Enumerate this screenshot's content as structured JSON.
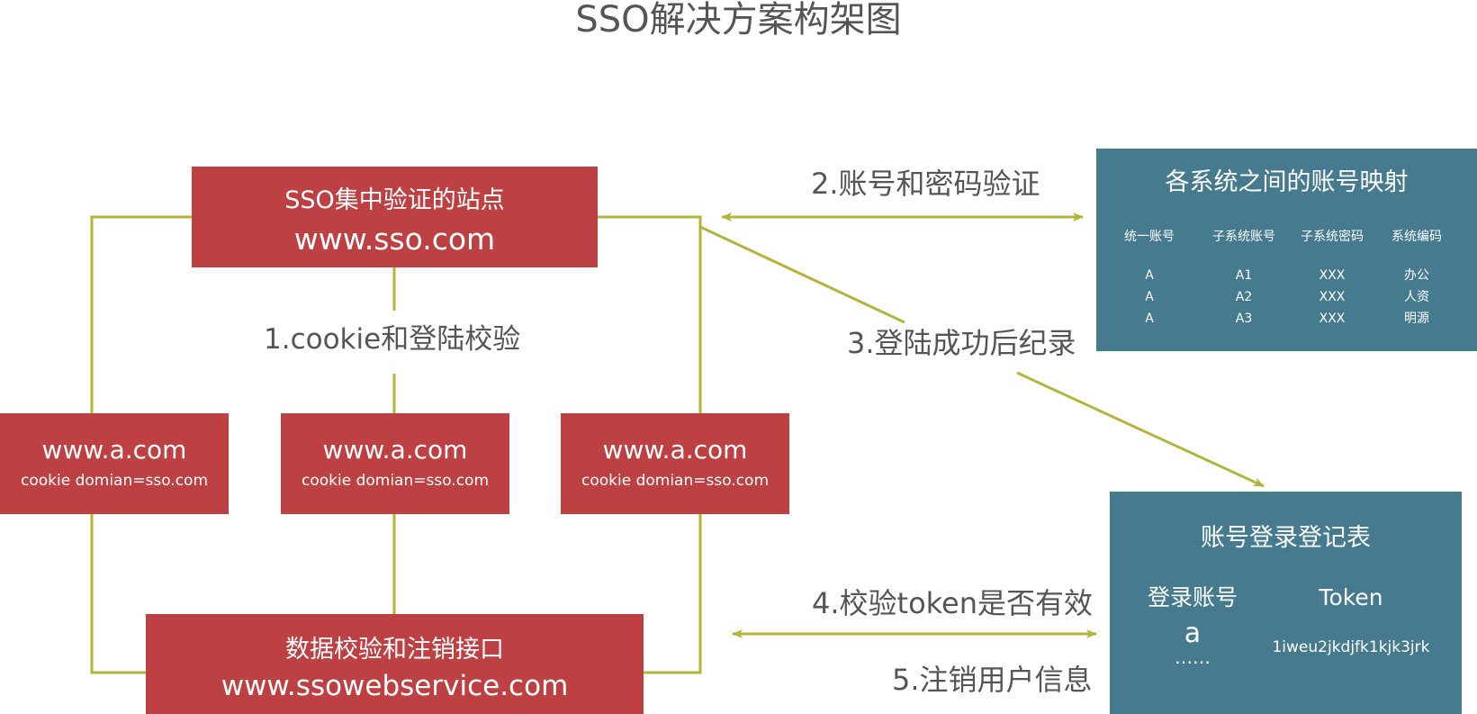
{
  "title": "SSO解决方案构架图",
  "colors": {
    "box_red": "#bd4143",
    "box_teal": "#467a8f",
    "connector": "#b4b43c",
    "label_text": "#555555"
  },
  "sso_site": {
    "title": "SSO集中验证的站点",
    "url": "www.sso.com"
  },
  "sites": [
    {
      "url": "www.a.com",
      "cookie": "cookie domian=sso.com"
    },
    {
      "url": "www.a.com",
      "cookie": "cookie domian=sso.com"
    },
    {
      "url": "www.a.com",
      "cookie": "cookie domian=sso.com"
    }
  ],
  "service": {
    "title": "数据校验和注销接口",
    "url": "www.ssowebservice.com"
  },
  "mapping_table": {
    "title": "各系统之间的账号映射",
    "columns": [
      "统一账号",
      "子系统账号",
      "子系统密码",
      "系统编码"
    ],
    "rows": [
      [
        "A",
        "A1",
        "XXX",
        "办公"
      ],
      [
        "A",
        "A2",
        "XXX",
        "人资"
      ],
      [
        "A",
        "A3",
        "XXX",
        "明源"
      ]
    ]
  },
  "login_table": {
    "title": "账号登录登记表",
    "columns": [
      "登录账号",
      "Token"
    ],
    "account": "a",
    "more": "……",
    "token": "1iweu2jkdjfk1kjk3jrk"
  },
  "steps": {
    "step1": "1.cookie和登陆校验",
    "step2": "2.账号和密码验证",
    "step3": "3.登陆成功后纪录",
    "step4": "4.校验token是否有效",
    "step5": "5.注销用户信息"
  }
}
